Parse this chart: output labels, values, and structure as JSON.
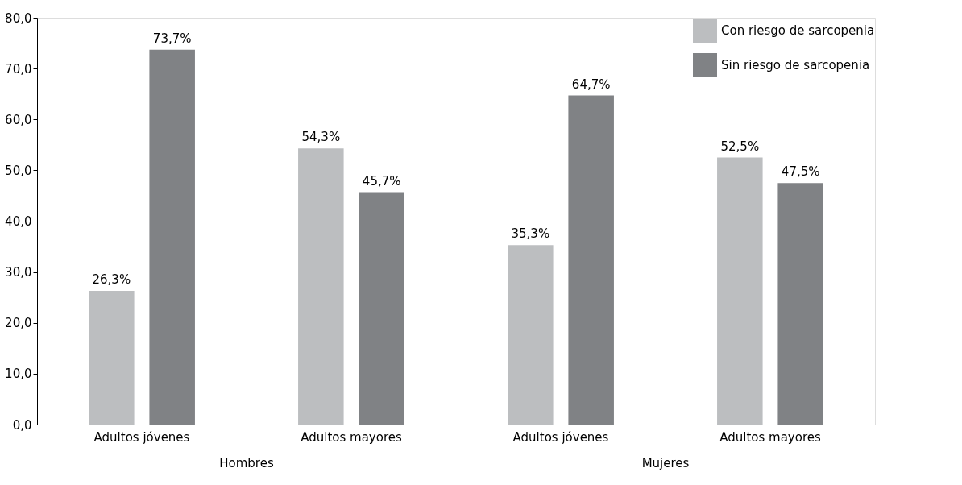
{
  "chart_data": {
    "type": "bar",
    "categories": [
      "Adultos jóvenes",
      "Adultos mayores",
      "Adultos jóvenes",
      "Adultos mayores"
    ],
    "series": [
      {
        "name": "Con riesgo de sarcopenia",
        "color": "#bcbec0",
        "values": [
          26.3,
          54.3,
          35.3,
          52.5
        ],
        "value_labels": [
          "26,3%",
          "54,3%",
          "35,3%",
          "52,5%"
        ]
      },
      {
        "name": "Sin riesgo de sarcopenia",
        "color": "#808285",
        "values": [
          73.7,
          45.7,
          64.7,
          47.5
        ],
        "value_labels": [
          "73,7%",
          "45,7%",
          "64,7%",
          "47,5%"
        ]
      }
    ],
    "ylim": [
      0,
      80
    ],
    "yticks": [
      {
        "value": 0,
        "label": "0,0"
      },
      {
        "value": 10,
        "label": "10,0"
      },
      {
        "value": 20,
        "label": "20,0"
      },
      {
        "value": 30,
        "label": "30,0"
      },
      {
        "value": 40,
        "label": "40,0"
      },
      {
        "value": 50,
        "label": "50,0"
      },
      {
        "value": 60,
        "label": "60,0"
      },
      {
        "value": 70,
        "label": "70,0"
      },
      {
        "value": 80,
        "label": "80,0"
      }
    ],
    "annotations": [
      "Hombres",
      "Mujeres"
    ],
    "legend": "top right",
    "grid": false
  }
}
